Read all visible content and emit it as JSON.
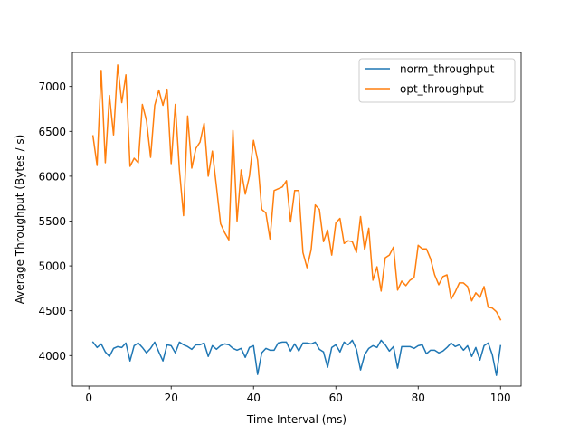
{
  "chart_data": {
    "type": "line",
    "title": "",
    "xlabel": "Time Interval (ms)",
    "ylabel": "Average Throughput (Bytes / s)",
    "xlim": [
      -4,
      105
    ],
    "ylim": [
      3660,
      7380
    ],
    "xticks": [
      0,
      20,
      40,
      60,
      80,
      100
    ],
    "yticks": [
      4000,
      4500,
      5000,
      5500,
      6000,
      6500,
      7000
    ],
    "grid": false,
    "legend_position": "top-right",
    "x": [
      1,
      2,
      3,
      4,
      5,
      6,
      7,
      8,
      9,
      10,
      11,
      12,
      13,
      14,
      15,
      16,
      17,
      18,
      19,
      20,
      21,
      22,
      23,
      24,
      25,
      26,
      27,
      28,
      29,
      30,
      31,
      32,
      33,
      34,
      35,
      36,
      37,
      38,
      39,
      40,
      41,
      42,
      43,
      44,
      45,
      46,
      47,
      48,
      49,
      50,
      51,
      52,
      53,
      54,
      55,
      56,
      57,
      58,
      59,
      60,
      61,
      62,
      63,
      64,
      65,
      66,
      67,
      68,
      69,
      70,
      71,
      72,
      73,
      74,
      75,
      76,
      77,
      78,
      79,
      80,
      81,
      82,
      83,
      84,
      85,
      86,
      87,
      88,
      89,
      90,
      91,
      92,
      93,
      94,
      95,
      96,
      97,
      98,
      99,
      100
    ],
    "series": [
      {
        "name": "norm_throughput",
        "color": "#1f77b4",
        "values": [
          4150,
          4090,
          4130,
          4040,
          3990,
          4080,
          4100,
          4090,
          4140,
          3940,
          4110,
          4140,
          4090,
          4030,
          4080,
          4150,
          4040,
          3940,
          4120,
          4110,
          4030,
          4150,
          4120,
          4100,
          4070,
          4120,
          4120,
          4140,
          3990,
          4110,
          4070,
          4110,
          4130,
          4120,
          4080,
          4060,
          4080,
          3980,
          4090,
          4110,
          3790,
          4030,
          4080,
          4060,
          4060,
          4140,
          4150,
          4150,
          4050,
          4130,
          4050,
          4140,
          4140,
          4130,
          4150,
          4070,
          4040,
          3870,
          4090,
          4120,
          4040,
          4150,
          4120,
          4170,
          4070,
          3840,
          4010,
          4080,
          4110,
          4090,
          4170,
          4120,
          4050,
          4100,
          3860,
          4100,
          4100,
          4100,
          4080,
          4110,
          4120,
          4020,
          4060,
          4060,
          4030,
          4050,
          4090,
          4140,
          4100,
          4120,
          4060,
          4110,
          3990,
          4090,
          3950,
          4110,
          4140,
          4010,
          3780,
          4110
        ]
      },
      {
        "name": "opt_throughput",
        "color": "#ff7f0e",
        "values": [
          6450,
          6120,
          7180,
          6150,
          6900,
          6460,
          7240,
          6820,
          7130,
          6110,
          6200,
          6150,
          6800,
          6620,
          6210,
          6790,
          6960,
          6790,
          6970,
          6140,
          6800,
          6070,
          5560,
          6670,
          6090,
          6310,
          6380,
          6590,
          6000,
          6280,
          5880,
          5470,
          5370,
          5290,
          6510,
          5500,
          6070,
          5800,
          6000,
          6400,
          6180,
          5630,
          5590,
          5300,
          5840,
          5860,
          5880,
          5950,
          5490,
          5840,
          5840,
          5150,
          4980,
          5180,
          5680,
          5630,
          5270,
          5400,
          5120,
          5480,
          5530,
          5250,
          5280,
          5270,
          5150,
          5550,
          5180,
          5420,
          4840,
          4990,
          4720,
          5090,
          5120,
          5210,
          4730,
          4830,
          4780,
          4840,
          4870,
          5230,
          5190,
          5190,
          5080,
          4900,
          4790,
          4880,
          4900,
          4630,
          4710,
          4810,
          4810,
          4770,
          4610,
          4700,
          4650,
          4770,
          4540,
          4530,
          4490,
          4400
        ]
      }
    ]
  }
}
